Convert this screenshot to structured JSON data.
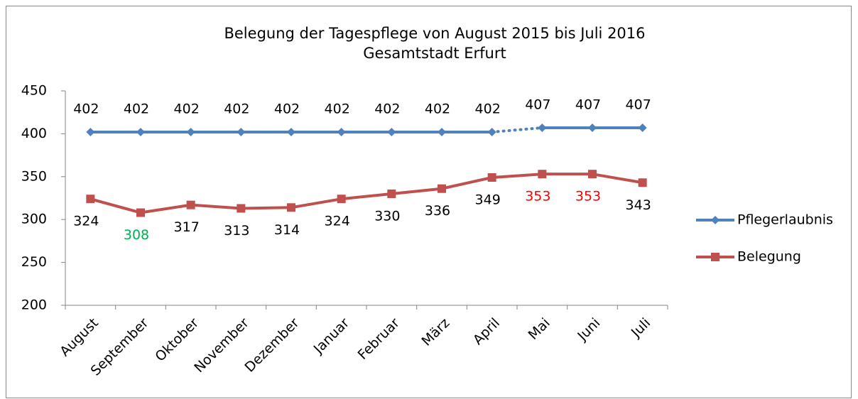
{
  "chart_data": {
    "type": "line",
    "title": "Belegung der Tagespflege von August 2015 bis Juli 2016",
    "subtitle": "Gesamtstadt Erfurt",
    "categories": [
      "August",
      "September",
      "Oktober",
      "November",
      "Dezember",
      "Januar",
      "Februar",
      "März",
      "April",
      "Mai",
      "Juni",
      "Juli"
    ],
    "series": [
      {
        "name": "Pflegerlaubnis",
        "color": "#4f81bd",
        "marker": "diamond",
        "label_position": "above",
        "values": [
          402,
          402,
          402,
          402,
          402,
          402,
          402,
          402,
          402,
          407,
          407,
          407
        ],
        "value_label_colors": [
          "#000000",
          "#000000",
          "#000000",
          "#000000",
          "#000000",
          "#000000",
          "#000000",
          "#000000",
          "#000000",
          "#000000",
          "#000000",
          "#000000"
        ],
        "dotted_segments": [
          [
            8,
            9
          ]
        ]
      },
      {
        "name": "Belegung",
        "color": "#c0504d",
        "marker": "square",
        "label_position": "below",
        "values": [
          324,
          308,
          317,
          313,
          314,
          324,
          330,
          336,
          349,
          353,
          353,
          343
        ],
        "value_label_colors": [
          "#000000",
          "#00b050",
          "#000000",
          "#000000",
          "#000000",
          "#000000",
          "#000000",
          "#000000",
          "#000000",
          "#ff0000",
          "#ff0000",
          "#000000"
        ],
        "dotted_segments": []
      }
    ],
    "ylim": [
      200,
      450
    ],
    "yticks": [
      200,
      250,
      300,
      350,
      400,
      450
    ],
    "grid": false,
    "legend": "right"
  }
}
